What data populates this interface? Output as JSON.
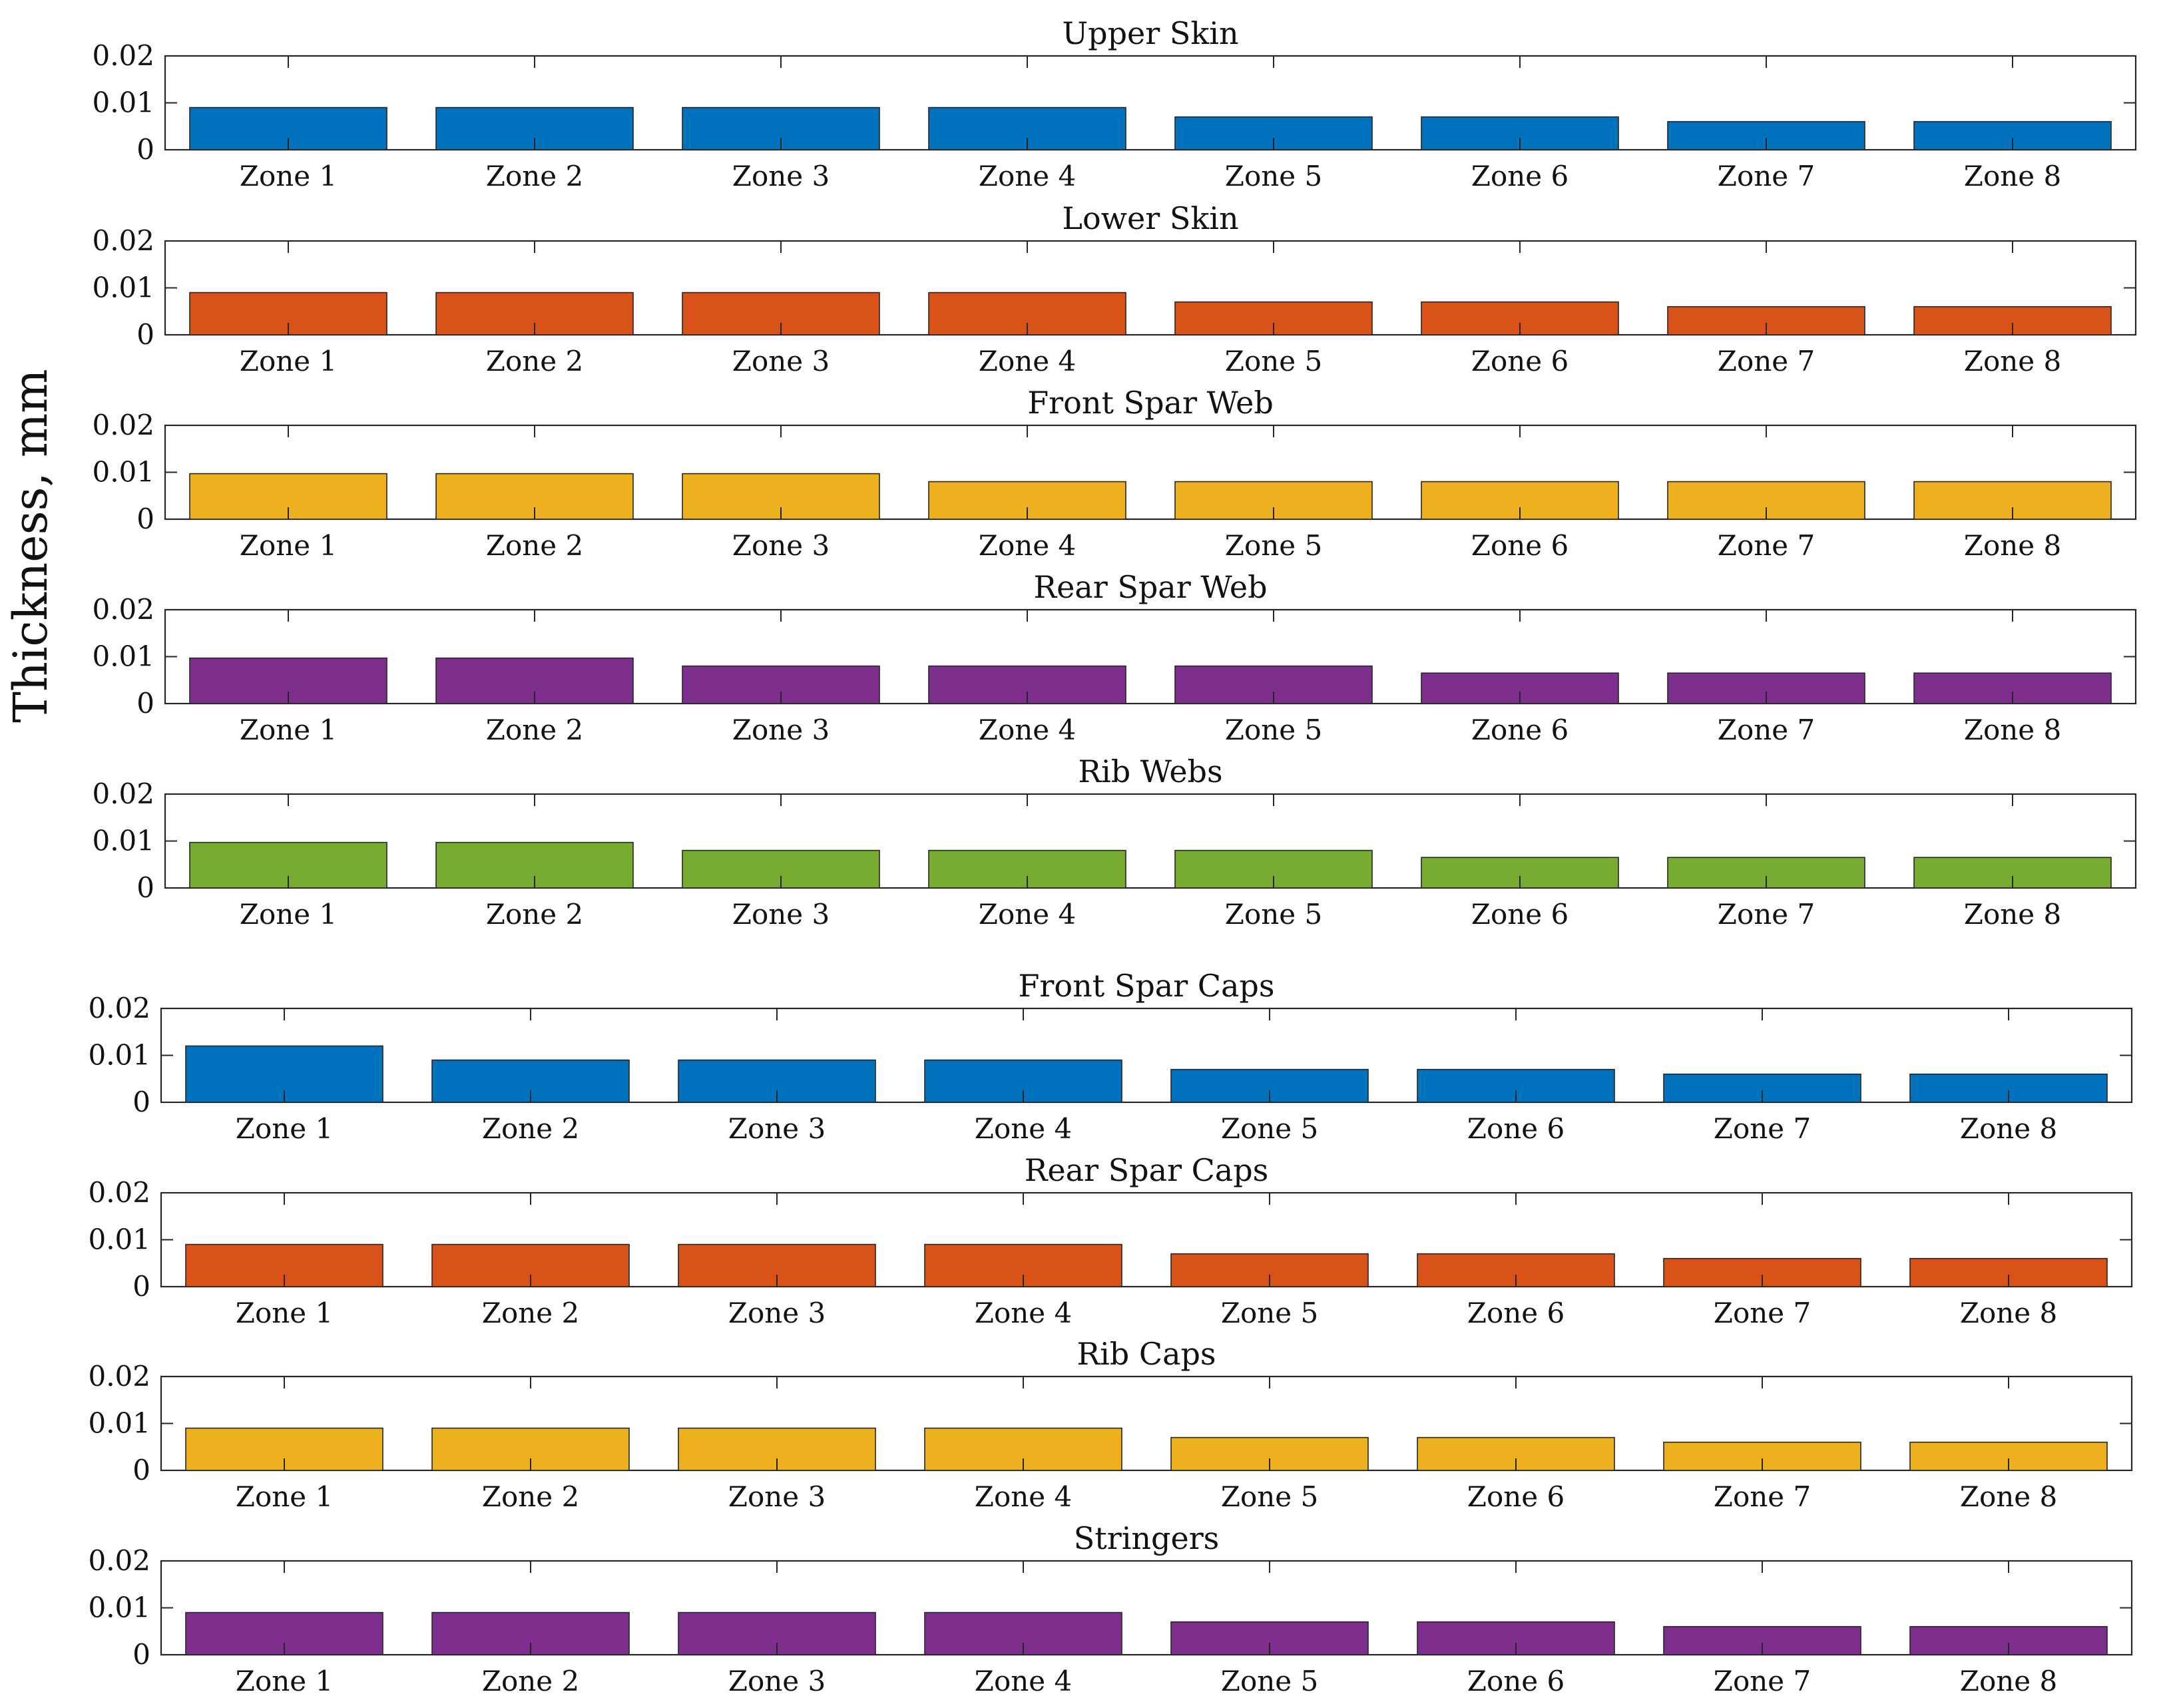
{
  "chart_data": [
    {
      "type": "bar",
      "title": "Upper Skin",
      "categories": [
        "Zone 1",
        "Zone 2",
        "Zone 3",
        "Zone 4",
        "Zone 5",
        "Zone 6",
        "Zone 7",
        "Zone 8"
      ],
      "values": [
        0.009,
        0.009,
        0.009,
        0.009,
        0.007,
        0.007,
        0.006,
        0.006
      ],
      "ylim": [
        0,
        0.02
      ],
      "yticks": [
        "0",
        "0.01",
        "0.02"
      ],
      "color": "#0072BD"
    },
    {
      "type": "bar",
      "title": "Lower Skin",
      "categories": [
        "Zone 1",
        "Zone 2",
        "Zone 3",
        "Zone 4",
        "Zone 5",
        "Zone 6",
        "Zone 7",
        "Zone 8"
      ],
      "values": [
        0.009,
        0.009,
        0.009,
        0.009,
        0.007,
        0.007,
        0.006,
        0.006
      ],
      "ylim": [
        0,
        0.02
      ],
      "yticks": [
        "0",
        "0.01",
        "0.02"
      ],
      "color": "#D95319"
    },
    {
      "type": "bar",
      "title": "Front Spar Web",
      "categories": [
        "Zone 1",
        "Zone 2",
        "Zone 3",
        "Zone 4",
        "Zone 5",
        "Zone 6",
        "Zone 7",
        "Zone 8"
      ],
      "values": [
        0.0097,
        0.0097,
        0.0097,
        0.008,
        0.008,
        0.008,
        0.008,
        0.008
      ],
      "ylim": [
        0,
        0.02
      ],
      "yticks": [
        "0",
        "0.01",
        "0.02"
      ],
      "color": "#EDB120"
    },
    {
      "type": "bar",
      "title": "Rear Spar Web",
      "categories": [
        "Zone 1",
        "Zone 2",
        "Zone 3",
        "Zone 4",
        "Zone 5",
        "Zone 6",
        "Zone 7",
        "Zone 8"
      ],
      "values": [
        0.0097,
        0.0097,
        0.008,
        0.008,
        0.008,
        0.0065,
        0.0065,
        0.0065
      ],
      "ylim": [
        0,
        0.02
      ],
      "yticks": [
        "0",
        "0.01",
        "0.02"
      ],
      "color": "#7E2F8E"
    },
    {
      "type": "bar",
      "title": "Rib Webs",
      "categories": [
        "Zone 1",
        "Zone 2",
        "Zone 3",
        "Zone 4",
        "Zone 5",
        "Zone 6",
        "Zone 7",
        "Zone 8"
      ],
      "values": [
        0.0097,
        0.0097,
        0.008,
        0.008,
        0.008,
        0.0065,
        0.0065,
        0.0065
      ],
      "ylim": [
        0,
        0.02
      ],
      "yticks": [
        "0",
        "0.01",
        "0.02"
      ],
      "color": "#77AC30"
    },
    {
      "type": "bar",
      "title": "Front Spar Caps",
      "categories": [
        "Zone 1",
        "Zone 2",
        "Zone 3",
        "Zone 4",
        "Zone 5",
        "Zone 6",
        "Zone 7",
        "Zone 8"
      ],
      "values": [
        0.012,
        0.009,
        0.009,
        0.009,
        0.007,
        0.007,
        0.006,
        0.006
      ],
      "ylim": [
        0,
        0.02
      ],
      "yticks": [
        "0",
        "0.01",
        "0.02"
      ],
      "color": "#0072BD"
    },
    {
      "type": "bar",
      "title": "Rear Spar Caps",
      "categories": [
        "Zone 1",
        "Zone 2",
        "Zone 3",
        "Zone 4",
        "Zone 5",
        "Zone 6",
        "Zone 7",
        "Zone 8"
      ],
      "values": [
        0.009,
        0.009,
        0.009,
        0.009,
        0.007,
        0.007,
        0.006,
        0.006
      ],
      "ylim": [
        0,
        0.02
      ],
      "yticks": [
        "0",
        "0.01",
        "0.02"
      ],
      "color": "#D95319"
    },
    {
      "type": "bar",
      "title": "Rib Caps",
      "categories": [
        "Zone 1",
        "Zone 2",
        "Zone 3",
        "Zone 4",
        "Zone 5",
        "Zone 6",
        "Zone 7",
        "Zone 8"
      ],
      "values": [
        0.009,
        0.009,
        0.009,
        0.009,
        0.007,
        0.007,
        0.006,
        0.006
      ],
      "ylim": [
        0,
        0.02
      ],
      "yticks": [
        "0",
        "0.01",
        "0.02"
      ],
      "color": "#EDB120"
    },
    {
      "type": "bar",
      "title": "Stringers",
      "categories": [
        "Zone 1",
        "Zone 2",
        "Zone 3",
        "Zone 4",
        "Zone 5",
        "Zone 6",
        "Zone 7",
        "Zone 8"
      ],
      "values": [
        0.009,
        0.009,
        0.009,
        0.009,
        0.007,
        0.007,
        0.006,
        0.006
      ],
      "ylim": [
        0,
        0.02
      ],
      "yticks": [
        "0",
        "0.01",
        "0.02"
      ],
      "color": "#7E2F8E"
    }
  ],
  "figure": {
    "ylabel": "Thickness, mm"
  }
}
